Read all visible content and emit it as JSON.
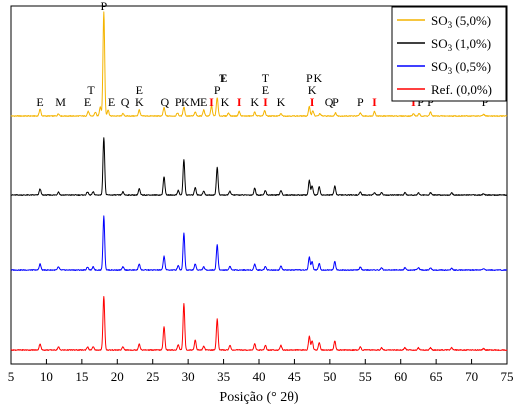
{
  "chart_data": {
    "type": "line",
    "title": "",
    "xlabel": "Posição (° 2θ)",
    "ylabel": "",
    "xlim": [
      5,
      75
    ],
    "xticks": [
      5,
      10,
      15,
      20,
      25,
      30,
      35,
      40,
      45,
      50,
      55,
      60,
      65,
      70,
      75
    ],
    "xtick_labels": [
      "5",
      "10",
      "15",
      "20",
      "25",
      "30",
      "35",
      "40",
      "45",
      "50",
      "55",
      "60",
      "65",
      "70",
      "75"
    ],
    "grid": false,
    "legend_position": "top-right",
    "legend": [
      {
        "prefix": "SO",
        "sub": "3",
        "suffix": " (5,0%)",
        "color": "#f4b400"
      },
      {
        "prefix": "SO",
        "sub": "3",
        "suffix": " (1,0%)",
        "color": "#000000"
      },
      {
        "prefix": "SO",
        "sub": "3",
        "suffix": " (0,5%)",
        "color": "#0000ff"
      },
      {
        "prefix": "",
        "sub": "",
        "suffix": "Ref. (0,0%)",
        "color": "#ff0000"
      }
    ],
    "series": [
      {
        "name": "SO3 (5,0%)",
        "color": "#f4b400",
        "baseline": 0.0,
        "peaks": [
          [
            9.1,
            0.9
          ],
          [
            11.7,
            0.3
          ],
          [
            15.9,
            0.6
          ],
          [
            16.9,
            0.5
          ],
          [
            17.6,
            1.2
          ],
          [
            18.1,
            13.5
          ],
          [
            18.7,
            0.8
          ],
          [
            20.8,
            0.3
          ],
          [
            23.1,
            0.8
          ],
          [
            26.6,
            1.1
          ],
          [
            28.5,
            0.4
          ],
          [
            29.4,
            1.2
          ],
          [
            31.0,
            0.5
          ],
          [
            32.2,
            0.8
          ],
          [
            33.3,
            1.3
          ],
          [
            34.1,
            2.4
          ],
          [
            35.7,
            0.4
          ],
          [
            37.2,
            0.6
          ],
          [
            39.4,
            0.5
          ],
          [
            40.8,
            0.7
          ],
          [
            43.1,
            0.3
          ],
          [
            47.1,
            1.2
          ],
          [
            47.6,
            0.7
          ],
          [
            48.6,
            0.3
          ],
          [
            50.8,
            0.4
          ],
          [
            54.3,
            0.4
          ],
          [
            56.3,
            0.6
          ],
          [
            61.8,
            0.3
          ],
          [
            62.6,
            0.3
          ],
          [
            64.2,
            0.5
          ],
          [
            71.7,
            0.2
          ]
        ]
      },
      {
        "name": "SO3 (1,0%)",
        "color": "#000000",
        "baseline": 0.0,
        "peaks": [
          [
            9.1,
            0.8
          ],
          [
            11.7,
            0.4
          ],
          [
            15.8,
            0.4
          ],
          [
            16.6,
            0.4
          ],
          [
            18.1,
            7.5
          ],
          [
            20.8,
            0.4
          ],
          [
            23.1,
            0.8
          ],
          [
            26.6,
            2.4
          ],
          [
            28.6,
            0.6
          ],
          [
            29.4,
            4.6
          ],
          [
            31.0,
            1.0
          ],
          [
            32.2,
            0.5
          ],
          [
            34.1,
            3.6
          ],
          [
            35.9,
            0.5
          ],
          [
            39.4,
            0.9
          ],
          [
            40.9,
            0.6
          ],
          [
            43.1,
            0.6
          ],
          [
            47.1,
            1.9
          ],
          [
            47.5,
            1.2
          ],
          [
            48.5,
            1.1
          ],
          [
            50.7,
            1.2
          ],
          [
            54.3,
            0.4
          ],
          [
            56.3,
            0.3
          ],
          [
            57.3,
            0.3
          ],
          [
            60.6,
            0.3
          ],
          [
            62.5,
            0.3
          ],
          [
            64.2,
            0.3
          ],
          [
            67.2,
            0.3
          ],
          [
            71.7,
            0.2
          ]
        ]
      },
      {
        "name": "SO3 (0,5%)",
        "color": "#0000ff",
        "baseline": 0.0,
        "peaks": [
          [
            9.1,
            0.8
          ],
          [
            11.7,
            0.4
          ],
          [
            15.8,
            0.4
          ],
          [
            16.6,
            0.4
          ],
          [
            18.1,
            7.0
          ],
          [
            20.8,
            0.4
          ],
          [
            23.1,
            0.8
          ],
          [
            26.6,
            1.8
          ],
          [
            28.6,
            0.6
          ],
          [
            29.4,
            4.8
          ],
          [
            31.0,
            0.8
          ],
          [
            32.2,
            0.4
          ],
          [
            34.1,
            3.3
          ],
          [
            35.9,
            0.5
          ],
          [
            39.4,
            0.8
          ],
          [
            40.9,
            0.5
          ],
          [
            43.1,
            0.5
          ],
          [
            47.1,
            1.7
          ],
          [
            47.5,
            1.1
          ],
          [
            48.5,
            0.9
          ],
          [
            50.7,
            1.1
          ],
          [
            54.3,
            0.4
          ],
          [
            57.3,
            0.3
          ],
          [
            60.6,
            0.3
          ],
          [
            62.5,
            0.3
          ],
          [
            64.2,
            0.3
          ],
          [
            67.2,
            0.2
          ],
          [
            71.7,
            0.2
          ]
        ]
      },
      {
        "name": "Ref. (0,0%)",
        "color": "#ff0000",
        "baseline": 0.0,
        "peaks": [
          [
            9.1,
            0.8
          ],
          [
            11.7,
            0.4
          ],
          [
            15.8,
            0.4
          ],
          [
            16.6,
            0.4
          ],
          [
            18.1,
            7.0
          ],
          [
            20.8,
            0.4
          ],
          [
            23.1,
            0.8
          ],
          [
            26.6,
            3.0
          ],
          [
            28.6,
            0.7
          ],
          [
            29.4,
            6.0
          ],
          [
            31.0,
            1.3
          ],
          [
            32.2,
            0.5
          ],
          [
            34.1,
            4.0
          ],
          [
            35.9,
            0.6
          ],
          [
            39.4,
            0.8
          ],
          [
            40.9,
            0.6
          ],
          [
            43.1,
            0.6
          ],
          [
            47.1,
            1.8
          ],
          [
            47.5,
            1.2
          ],
          [
            48.5,
            1.0
          ],
          [
            50.7,
            1.2
          ],
          [
            54.3,
            0.4
          ],
          [
            57.3,
            0.3
          ],
          [
            60.6,
            0.3
          ],
          [
            62.5,
            0.3
          ],
          [
            64.2,
            0.3
          ],
          [
            67.2,
            0.3
          ],
          [
            71.7,
            0.2
          ]
        ]
      }
    ],
    "annotations": [
      {
        "text": "P",
        "x": 18.1,
        "color": "#000000"
      },
      {
        "text": "E",
        "x": 9.1,
        "color": "#000000"
      },
      {
        "text": "M",
        "x": 12.0,
        "color": "#000000"
      },
      {
        "text": "E",
        "x": 15.8,
        "color": "#000000"
      },
      {
        "text": "T",
        "x": 16.3,
        "color": "#000000"
      },
      {
        "text": "E",
        "x": 19.2,
        "color": "#000000"
      },
      {
        "text": "Q",
        "x": 21.1,
        "color": "#000000"
      },
      {
        "text": "K",
        "x": 23.1,
        "color": "#000000"
      },
      {
        "text": "E",
        "x": 23.1,
        "color": "#000000"
      },
      {
        "text": "Q",
        "x": 26.7,
        "color": "#000000"
      },
      {
        "text": "P",
        "x": 28.6,
        "color": "#000000"
      },
      {
        "text": "K",
        "x": 29.6,
        "color": "#000000"
      },
      {
        "text": "M",
        "x": 31.0,
        "color": "#000000"
      },
      {
        "text": "E",
        "x": 32.2,
        "color": "#000000"
      },
      {
        "text": "I",
        "x": 33.3,
        "color": "#ff0000"
      },
      {
        "text": "P",
        "x": 34.1,
        "color": "#000000"
      },
      {
        "text": "K",
        "x": 35.2,
        "color": "#000000"
      },
      {
        "text": "T",
        "x": 34.9,
        "color": "#000000"
      },
      {
        "text": "E",
        "x": 35.0,
        "color": "#000000"
      },
      {
        "text": "I",
        "x": 37.2,
        "color": "#ff0000"
      },
      {
        "text": "K",
        "x": 39.4,
        "color": "#000000"
      },
      {
        "text": "I",
        "x": 40.9,
        "color": "#ff0000"
      },
      {
        "text": "E",
        "x": 40.9,
        "color": "#000000"
      },
      {
        "text": "T",
        "x": 40.9,
        "color": "#000000"
      },
      {
        "text": "K",
        "x": 43.1,
        "color": "#000000"
      },
      {
        "text": "I",
        "x": 47.5,
        "color": "#ff0000"
      },
      {
        "text": "K",
        "x": 47.5,
        "color": "#000000"
      },
      {
        "text": "P",
        "x": 47.1,
        "color": "#000000"
      },
      {
        "text": "K",
        "x": 48.3,
        "color": "#000000"
      },
      {
        "text": "Q",
        "x": 49.9,
        "color": "#000000"
      },
      {
        "text": "P",
        "x": 50.8,
        "color": "#000000"
      },
      {
        "text": "P",
        "x": 54.3,
        "color": "#000000"
      },
      {
        "text": "I",
        "x": 56.3,
        "color": "#ff0000"
      },
      {
        "text": "I",
        "x": 61.8,
        "color": "#ff0000"
      },
      {
        "text": "P",
        "x": 62.8,
        "color": "#000000"
      },
      {
        "text": "P",
        "x": 64.2,
        "color": "#000000"
      },
      {
        "text": "P",
        "x": 71.9,
        "color": "#000000"
      }
    ]
  }
}
